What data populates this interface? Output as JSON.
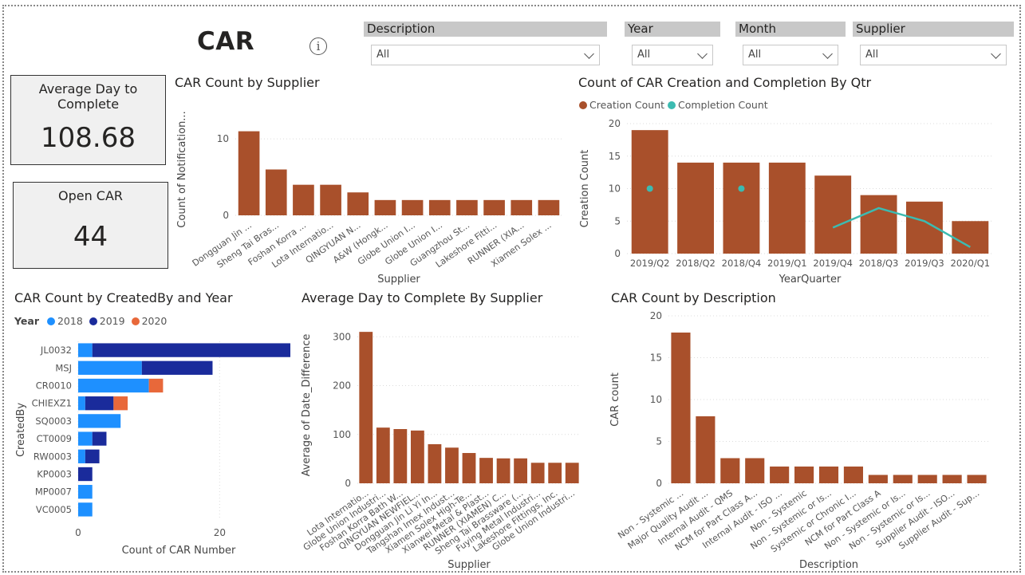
{
  "page": {
    "title": "CAR",
    "info_icon": "info-icon"
  },
  "slicers": [
    {
      "label": "Description",
      "value": "All"
    },
    {
      "label": "Year",
      "value": "All"
    },
    {
      "label": "Month",
      "value": "All"
    },
    {
      "label": "Supplier",
      "value": "All"
    }
  ],
  "cards": {
    "avg_day": {
      "label": "Average Day to Complete",
      "value": "108.68"
    },
    "open_car": {
      "label": "Open CAR",
      "value": "44"
    }
  },
  "colors": {
    "bar": "#a9502b",
    "line": "#3cbbb1",
    "y2018": "#1e90ff",
    "y2019": "#1a2b9b",
    "y2020": "#e8683a",
    "grid": "#dcdcdc"
  },
  "chart_data": [
    {
      "id": "supplier",
      "type": "bar",
      "title": "CAR Count by Supplier",
      "xlabel": "Supplier",
      "ylabel": "Count of Notification...",
      "categories": [
        "Dongguan Jin ...",
        "Sheng Tai Bras...",
        "Foshan Korra ...",
        "Lota Internatio...",
        "QINGYUAN N...",
        "A&W (Hongk...",
        "Globe Union I...",
        "Globe Union I...",
        "Guangzhou St...",
        "Lakeshore Fitti...",
        "RUNNER (XIA...",
        "Xiamen Solex ..."
      ],
      "values": [
        11,
        6,
        4,
        4,
        3,
        2,
        2,
        2,
        2,
        2,
        2,
        2
      ],
      "yticks": [
        0,
        10
      ],
      "ylim": [
        0,
        12
      ]
    },
    {
      "id": "quarter",
      "type": "bar",
      "title": "Count of CAR Creation and Completion By Qtr",
      "xlabel": "YearQuarter",
      "ylabel": "Creation Count",
      "categories": [
        "2019/Q2",
        "2018/Q2",
        "2018/Q4",
        "2019/Q1",
        "2019/Q4",
        "2018/Q3",
        "2019/Q3",
        "2020/Q1"
      ],
      "series": [
        {
          "name": "Creation Count",
          "values": [
            19,
            14,
            14,
            14,
            12,
            9,
            8,
            5
          ]
        },
        {
          "name": "Completion Count",
          "values": [
            10,
            null,
            10,
            null,
            4,
            7,
            5,
            1
          ]
        }
      ],
      "yticks": [
        0,
        5,
        10,
        15,
        20
      ],
      "ylim": [
        0,
        20
      ]
    },
    {
      "id": "createdby",
      "type": "bar",
      "orientation": "horizontal",
      "title": "CAR Count by CreatedBy and Year",
      "xlabel": "Count of CAR Number",
      "ylabel": "CreatedBy",
      "legend_title": "Year",
      "categories": [
        "JL0032",
        "MSJ",
        "CR0010",
        "CHIEXZ1",
        "SQ0003",
        "CT0009",
        "RW0003",
        "KP0003",
        "MP0007",
        "VC0005"
      ],
      "series": [
        {
          "name": "2018",
          "values": [
            2,
            9,
            10,
            1,
            6,
            2,
            1,
            0,
            2,
            2
          ]
        },
        {
          "name": "2019",
          "values": [
            28,
            10,
            0,
            4,
            0,
            2,
            2,
            2,
            0,
            0
          ]
        },
        {
          "name": "2020",
          "values": [
            0,
            0,
            2,
            2,
            0,
            0,
            0,
            0,
            0,
            0
          ]
        }
      ],
      "xticks": [
        0,
        20
      ],
      "xlim": [
        0,
        30
      ]
    },
    {
      "id": "avgday",
      "type": "bar",
      "title": "Average Day to Complete By Supplier",
      "xlabel": "Supplier",
      "ylabel": "Average of Date_Difference",
      "categories": [
        "Lota Internatio...",
        "Globe Union Industri...",
        "Foshan Korra Bath W...",
        "QINGYUAN NEWFIEL...",
        "Dongguan Jin Li Yi In...",
        "Tangshan Imex Indust...",
        "Xiamen Solex High-Te...",
        "Xianwei Metal & Plast...",
        "RUNNER (XIAMEN) C...",
        "Sheng Tai Brassware (...",
        "Fuying Metal Industri...",
        "Lakeshore Fittings, Inc.",
        "Globe Union Industri..."
      ],
      "values": [
        310,
        114,
        111,
        108,
        80,
        73,
        62,
        52,
        51,
        51,
        42,
        42,
        42
      ],
      "yticks": [
        0,
        100,
        200,
        300
      ],
      "ylim": [
        0,
        320
      ]
    },
    {
      "id": "description",
      "type": "bar",
      "title": "CAR Count by Description",
      "xlabel": "Description",
      "ylabel": "CAR count",
      "categories": [
        "Non - Systemic ...",
        "Major Quality Audit ...",
        "Internal Audit - QMS",
        "NCM for Part Class A...",
        "Internal Audit - ISO ...",
        "Non - Systemic",
        "Non - Systemic or Is...",
        "Systemic or Chronic I...",
        "NCM for Part Class A",
        "Non - Systemic or Is...",
        "Non - Systemic or Is...",
        "Supplier Audit - ISO...",
        "Supplier Audit - Sup..."
      ],
      "values": [
        18,
        8,
        3,
        3,
        2,
        2,
        2,
        2,
        1,
        1,
        1,
        1,
        1
      ],
      "yticks": [
        0,
        5,
        10,
        15,
        20
      ],
      "ylim": [
        0,
        20
      ]
    }
  ]
}
